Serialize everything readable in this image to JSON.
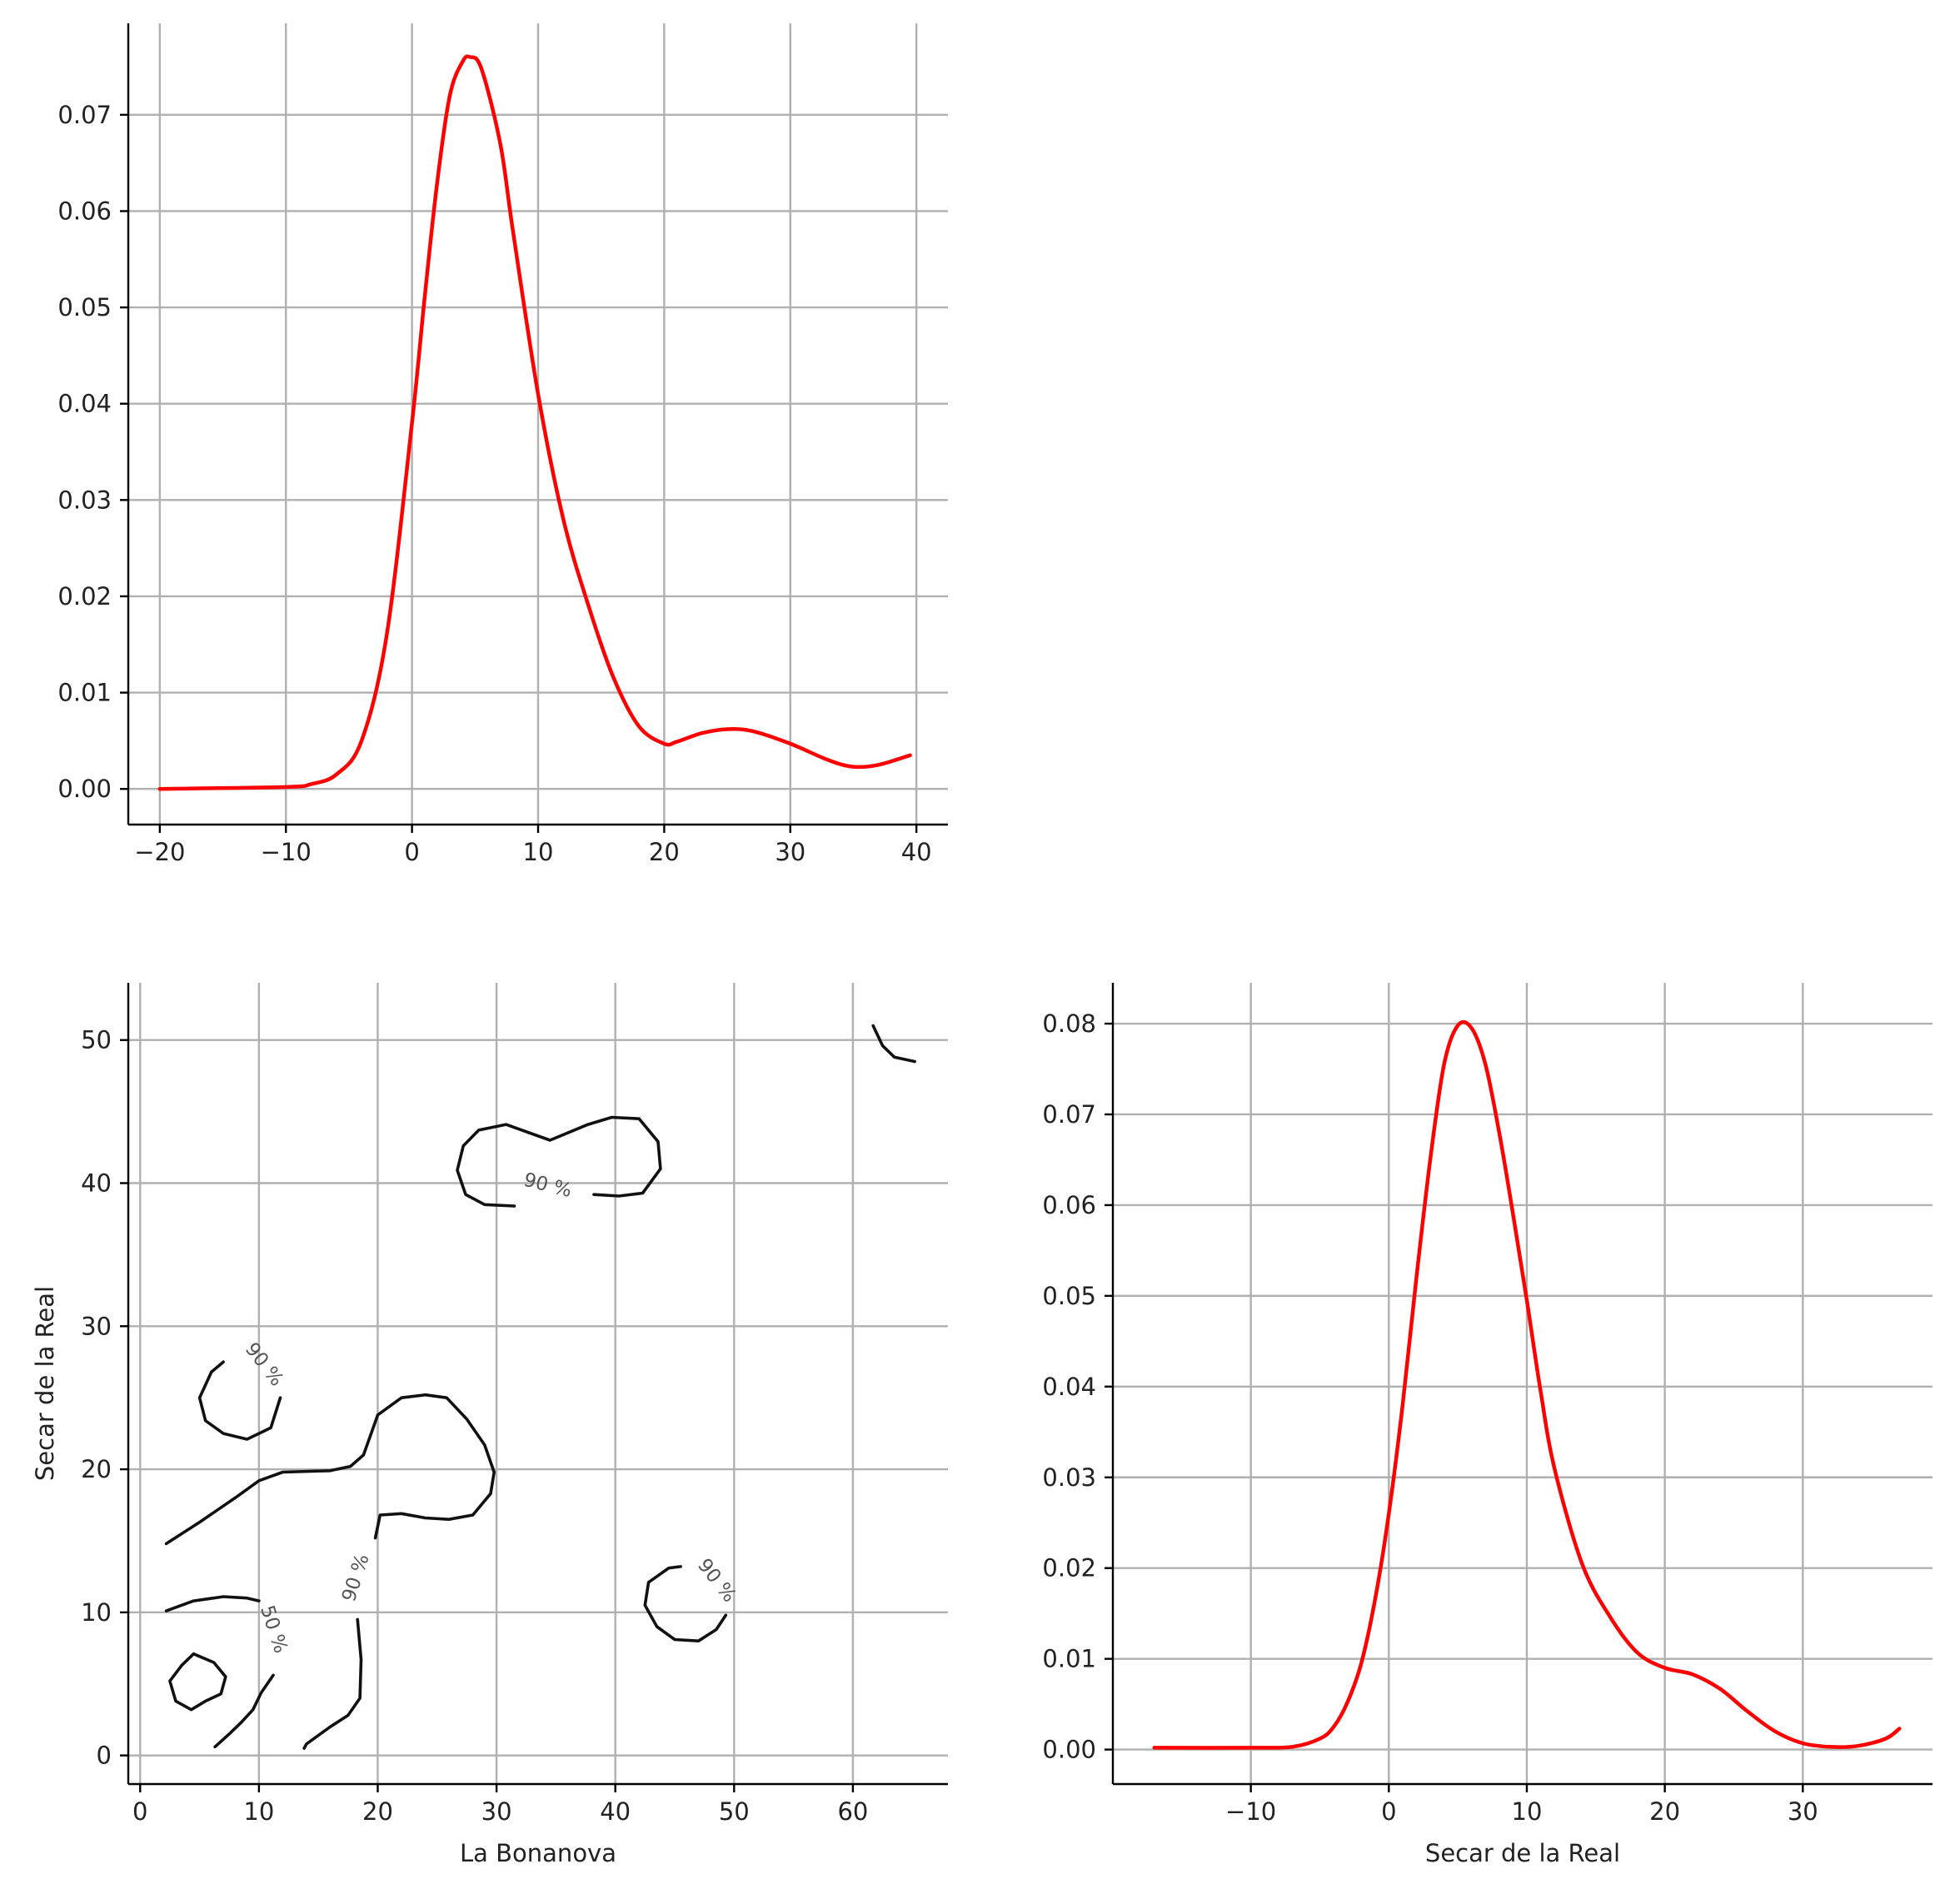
{
  "colors": {
    "kde_line": "#ff0000",
    "contour_line": "#111111",
    "grid": "#b0b0b0"
  },
  "chart_data": [
    {
      "id": "top-left-kde",
      "type": "line",
      "title": "",
      "xlabel": "",
      "ylabel": "",
      "grid": true,
      "xlim": [
        -22.5,
        42.5
      ],
      "ylim": [
        -0.0037,
        0.0795
      ],
      "x_ticks": [
        -20,
        -10,
        0,
        10,
        20,
        30,
        40
      ],
      "x_tick_labels": [
        "−20",
        "−10",
        "0",
        "10",
        "20",
        "30",
        "40"
      ],
      "y_ticks": [
        0.0,
        0.01,
        0.02,
        0.03,
        0.04,
        0.05,
        0.06,
        0.07
      ],
      "y_tick_labels": [
        "0.00",
        "0.01",
        "0.02",
        "0.03",
        "0.04",
        "0.05",
        "0.06",
        "0.07"
      ],
      "series": [
        {
          "color": "#ff0000",
          "x": [
            -20,
            -10,
            -8,
            -6,
            -4,
            -2,
            0,
            1,
            2,
            3,
            4,
            4.6,
            5.5,
            7,
            8,
            10,
            12,
            14,
            16,
            18,
            20,
            21,
            23,
            25,
            27,
            30,
            33,
            35,
            37,
            39.5
          ],
          "y": [
            0.0,
            0.0002,
            0.0005,
            0.0015,
            0.005,
            0.016,
            0.038,
            0.051,
            0.063,
            0.072,
            0.0755,
            0.076,
            0.0748,
            0.067,
            0.058,
            0.041,
            0.028,
            0.019,
            0.0115,
            0.0065,
            0.0047,
            0.0049,
            0.0058,
            0.0062,
            0.006,
            0.0047,
            0.003,
            0.0023,
            0.0025,
            0.0035
          ]
        }
      ]
    },
    {
      "id": "bottom-left-contour",
      "type": "contour",
      "title": "",
      "xlabel": "La Bonanova",
      "ylabel": "Secar de la Real",
      "grid": true,
      "xlim": [
        -1,
        68
      ],
      "ylim": [
        -2,
        54
      ],
      "x_ticks": [
        0,
        10,
        20,
        30,
        40,
        50,
        60
      ],
      "x_tick_labels": [
        "0",
        "10",
        "20",
        "30",
        "40",
        "50",
        "60"
      ],
      "y_ticks": [
        0,
        10,
        20,
        30,
        40,
        50
      ],
      "y_tick_labels": [
        "0",
        "10",
        "20",
        "30",
        "40",
        "50"
      ],
      "contour_labels": [
        {
          "text": "90 %",
          "x": 34.3,
          "y": 39.8,
          "angle": 14
        },
        {
          "text": "90 %",
          "x": 10.4,
          "y": 27.3,
          "angle": 52
        },
        {
          "text": "90 %",
          "x": 18.2,
          "y": 12.4,
          "angle": -72
        },
        {
          "text": "50 %",
          "x": 11.2,
          "y": 8.8,
          "angle": 72
        },
        {
          "text": "90 %",
          "x": 48.5,
          "y": 12.2,
          "angle": 52
        }
      ],
      "contours": [
        {
          "level": "90 %",
          "x": [
            31.5,
            29,
            27.4,
            26.7,
            27.2,
            28.5,
            30.8,
            34.5,
            37.7,
            39.7,
            42,
            43.6,
            43.8,
            42.3,
            40.3,
            38.2
          ],
          "y": [
            38.4,
            38.5,
            39.2,
            40.9,
            42.6,
            43.7,
            44.1,
            43.0,
            44.1,
            44.6,
            44.5,
            42.9,
            41.0,
            39.3,
            39.1,
            39.2
          ]
        },
        {
          "level": "90 %",
          "x": [
            7,
            6,
            5,
            5.5,
            7,
            9,
            11,
            11.8
          ],
          "y": [
            27.5,
            26.8,
            25.0,
            23.4,
            22.5,
            22.1,
            22.9,
            25.0
          ]
        },
        {
          "level": "90 %",
          "x": [
            2.2,
            5,
            8,
            10,
            12,
            16,
            17.7,
            18.8,
            20,
            22,
            24,
            25.8,
            27.5,
            29,
            29.8,
            29.5,
            28,
            26,
            24,
            22,
            20.2,
            19.8
          ],
          "y": [
            14.8,
            16.3,
            18.0,
            19.2,
            19.8,
            19.9,
            20.2,
            21.0,
            23.8,
            25.0,
            25.2,
            25.0,
            23.5,
            21.7,
            19.8,
            18.3,
            16.8,
            16.5,
            16.6,
            16.9,
            16.8,
            15.2
          ]
        },
        {
          "level": "90 %",
          "x": [
            18.3,
            18.6,
            18.5,
            17.5,
            16,
            14,
            13.8
          ],
          "y": [
            9.5,
            6.7,
            4.0,
            2.8,
            2.0,
            0.8,
            0.5
          ]
        },
        {
          "level": "50 %",
          "x": [
            2.2,
            4.5,
            7,
            9,
            10
          ],
          "y": [
            10.1,
            10.8,
            11.1,
            11.0,
            10.8
          ]
        },
        {
          "level": "50 %",
          "x": [
            11.2,
            10.2,
            9.5,
            8.5,
            7.5,
            6.3
          ],
          "y": [
            5.6,
            4.4,
            3.2,
            2.3,
            1.5,
            0.6
          ]
        },
        {
          "level": "50 %",
          "x": [
            4.5,
            6.2,
            7.2,
            6.8,
            5.5,
            4.3,
            3,
            2.5,
            3.5,
            4.5
          ],
          "y": [
            7.1,
            6.5,
            5.5,
            4.3,
            3.8,
            3.2,
            3.8,
            5.2,
            6.3,
            7.1
          ]
        },
        {
          "level": "90 %",
          "x": [
            45.5,
            44.5,
            42.8,
            42.5,
            43.5,
            45,
            47,
            48.5,
            49.3
          ],
          "y": [
            13.2,
            13.1,
            12.1,
            10.5,
            9.0,
            8.1,
            8.0,
            8.8,
            9.8
          ]
        },
        {
          "level": "90 %",
          "x": [
            61.7,
            62.5,
            63.5,
            65.2
          ],
          "y": [
            51.0,
            49.6,
            48.8,
            48.5
          ]
        }
      ]
    },
    {
      "id": "bottom-right-kde",
      "type": "line",
      "title": "",
      "xlabel": "Secar de la Real",
      "ylabel": "",
      "grid": true,
      "xlim": [
        -20,
        39.4
      ],
      "ylim": [
        -0.0038,
        0.0845
      ],
      "x_ticks": [
        -10,
        0,
        10,
        20,
        30
      ],
      "x_tick_labels": [
        "−10",
        "0",
        "10",
        "20",
        "30"
      ],
      "y_ticks": [
        0.0,
        0.01,
        0.02,
        0.03,
        0.04,
        0.05,
        0.06,
        0.07,
        0.08
      ],
      "y_tick_labels": [
        "0.00",
        "0.01",
        "0.02",
        "0.03",
        "0.04",
        "0.05",
        "0.06",
        "0.07",
        "0.08"
      ],
      "series": [
        {
          "color": "#ff0000",
          "x": [
            -17,
            -10,
            -7,
            -5,
            -4,
            -3,
            -2,
            -1,
            0,
            1,
            2,
            3,
            4,
            5,
            6,
            7,
            8,
            9,
            10,
            11,
            12,
            14,
            16,
            18,
            20,
            22,
            24,
            26,
            28,
            30,
            32,
            34,
            36,
            37
          ],
          "y": [
            0.0002,
            0.0002,
            0.0003,
            0.0012,
            0.0025,
            0.0052,
            0.0095,
            0.0165,
            0.026,
            0.038,
            0.052,
            0.065,
            0.0755,
            0.0798,
            0.0795,
            0.0755,
            0.068,
            0.059,
            0.0495,
            0.0395,
            0.031,
            0.0205,
            0.0147,
            0.0107,
            0.009,
            0.0083,
            0.0067,
            0.0042,
            0.002,
            0.0007,
            0.0003,
            0.0004,
            0.0012,
            0.0023
          ]
        }
      ]
    }
  ]
}
